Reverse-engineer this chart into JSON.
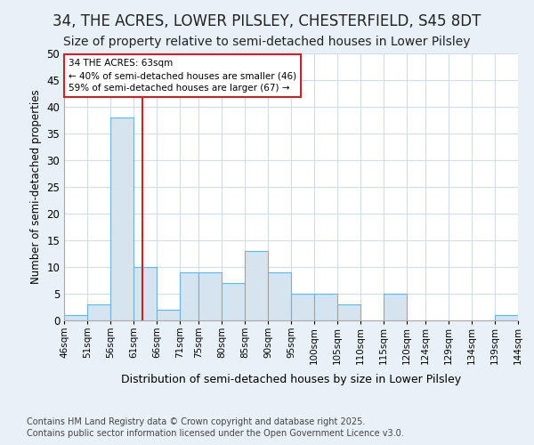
{
  "title": "34, THE ACRES, LOWER PILSLEY, CHESTERFIELD, S45 8DT",
  "subtitle": "Size of property relative to semi-detached houses in Lower Pilsley",
  "xlabel": "Distribution of semi-detached houses by size in Lower Pilsley",
  "ylabel": "Number of semi-detached properties",
  "footnote": "Contains HM Land Registry data © Crown copyright and database right 2025.\nContains public sector information licensed under the Open Government Licence v3.0.",
  "bins": [
    46,
    51,
    56,
    61,
    66,
    71,
    75,
    80,
    85,
    90,
    95,
    100,
    105,
    110,
    115,
    120,
    124,
    129,
    134,
    139,
    144
  ],
  "counts": [
    1,
    3,
    38,
    10,
    2,
    9,
    9,
    7,
    13,
    9,
    5,
    5,
    3,
    0,
    5,
    0,
    0,
    0,
    0,
    1
  ],
  "bar_color": "#d6e4f0",
  "bar_edge_color": "#7aafd4",
  "subject_value": 63,
  "red_line_color": "#cc2222",
  "annotation_line1": "34 THE ACRES: 63sqm",
  "annotation_line2": "← 40% of semi-detached houses are smaller (46)",
  "annotation_line3": "59% of semi-detached houses are larger (67) →",
  "annotation_box_color": "#ffffff",
  "annotation_box_edge": "#cc2222",
  "ylim": [
    0,
    50
  ],
  "yticks": [
    0,
    5,
    10,
    15,
    20,
    25,
    30,
    35,
    40,
    45,
    50
  ],
  "background_color": "#e8f0f8",
  "plot_bg_color": "#ffffff",
  "title_fontsize": 12,
  "subtitle_fontsize": 10,
  "footnote_fontsize": 7
}
